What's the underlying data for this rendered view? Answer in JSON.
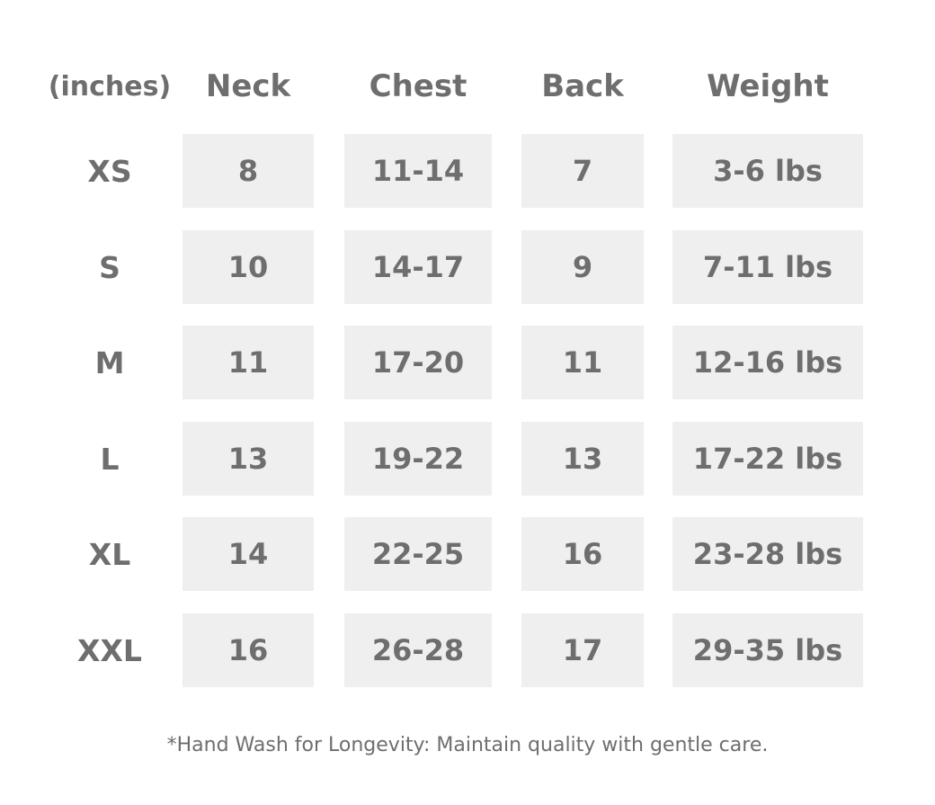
{
  "header": {
    "unit": "(inches)",
    "columns": [
      "Neck",
      "Chest",
      "Back",
      "Weight"
    ]
  },
  "table": {
    "rows": [
      [
        "XS",
        "8",
        "11-14",
        "7",
        "3-6 lbs"
      ],
      [
        "S",
        "10",
        "14-17",
        "9",
        "7-11 lbs"
      ],
      [
        "M",
        "11",
        "17-20",
        "11",
        "12-16 lbs"
      ],
      [
        "L",
        "13",
        "19-22",
        "13",
        "17-22 lbs"
      ],
      [
        "XL",
        "14",
        "22-25",
        "16",
        "23-28 lbs"
      ],
      [
        "XXL",
        "16",
        "26-28",
        "17",
        "29-35 lbs"
      ]
    ]
  },
  "footnote": "*Hand Wash for Longevity: Maintain quality with gentle care."
}
